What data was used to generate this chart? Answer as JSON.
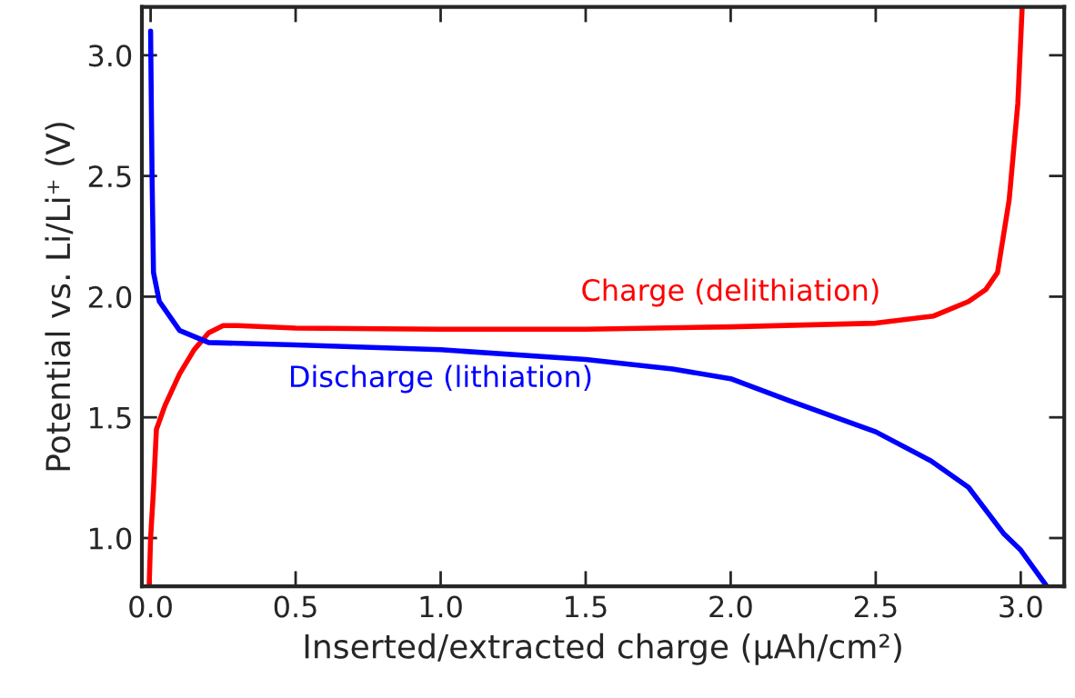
{
  "chart_data": {
    "type": "line",
    "xlabel": "Inserted/extracted charge (µAh/cm²)",
    "ylabel": "Potential vs. Li/Li⁺ (V)",
    "xlim": [
      -0.03,
      3.15
    ],
    "ylim": [
      0.8,
      3.2
    ],
    "xticks": [
      {
        "value": 0.0,
        "label": "0.0"
      },
      {
        "value": 0.5,
        "label": "0.5"
      },
      {
        "value": 1.0,
        "label": "1.0"
      },
      {
        "value": 1.5,
        "label": "1.5"
      },
      {
        "value": 2.0,
        "label": "2.0"
      },
      {
        "value": 2.5,
        "label": "2.5"
      },
      {
        "value": 3.0,
        "label": "3.0"
      }
    ],
    "yticks": [
      {
        "value": 1.0,
        "label": "1.0"
      },
      {
        "value": 1.5,
        "label": "1.5"
      },
      {
        "value": 2.0,
        "label": "2.0"
      },
      {
        "value": 2.5,
        "label": "2.5"
      },
      {
        "value": 3.0,
        "label": "3.0"
      }
    ],
    "grid": false,
    "legend": false,
    "series": [
      {
        "name": "Charge (delithiation)",
        "color": "#ff0000",
        "x": [
          -0.005,
          0.0,
          0.01,
          0.02,
          0.05,
          0.1,
          0.15,
          0.2,
          0.25,
          0.3,
          0.5,
          1.0,
          1.5,
          2.0,
          2.5,
          2.7,
          2.82,
          2.88,
          2.92,
          2.96,
          2.99,
          3.005
        ],
        "values": [
          0.8,
          1.0,
          1.2,
          1.45,
          1.55,
          1.68,
          1.78,
          1.85,
          1.88,
          1.88,
          1.87,
          1.865,
          1.865,
          1.875,
          1.89,
          1.92,
          1.98,
          2.03,
          2.1,
          2.4,
          2.8,
          3.2
        ]
      },
      {
        "name": "Discharge (lithiation)",
        "color": "#0000ff",
        "x": [
          0.0,
          0.005,
          0.01,
          0.03,
          0.1,
          0.2,
          0.5,
          1.0,
          1.5,
          1.8,
          2.0,
          2.2,
          2.5,
          2.69,
          2.82,
          2.94,
          3.0,
          3.09
        ],
        "values": [
          3.1,
          2.5,
          2.1,
          1.98,
          1.86,
          1.81,
          1.8,
          1.78,
          1.74,
          1.7,
          1.66,
          1.57,
          1.44,
          1.32,
          1.21,
          1.02,
          0.95,
          0.8
        ]
      }
    ]
  }
}
